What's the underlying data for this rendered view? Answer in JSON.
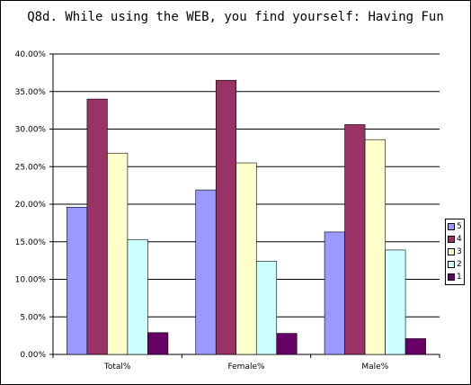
{
  "chart_data": {
    "type": "bar",
    "title": "Q8d. While using the WEB, you find yourself:  Having Fun",
    "categories": [
      "Total%",
      "Female%",
      "Male%"
    ],
    "ylim": [
      0,
      40
    ],
    "yticks": [
      "0.00%",
      "5.00%",
      "10.00%",
      "15.00%",
      "20.00%",
      "25.00%",
      "30.00%",
      "35.00%",
      "40.00%"
    ],
    "grid": true,
    "legend_position": "right",
    "series": [
      {
        "name": "5",
        "color": "#9999FF",
        "values": [
          19.6,
          21.9,
          16.3
        ]
      },
      {
        "name": "4",
        "color": "#993366",
        "values": [
          34.0,
          36.5,
          30.6
        ]
      },
      {
        "name": "3",
        "color": "#FFFFCC",
        "values": [
          26.8,
          25.5,
          28.6
        ]
      },
      {
        "name": "2",
        "color": "#CCFFFF",
        "values": [
          15.3,
          12.4,
          13.9
        ]
      },
      {
        "name": "1",
        "color": "#660066",
        "values": [
          2.9,
          2.8,
          2.1
        ]
      }
    ],
    "legend_order": [
      "5",
      "4",
      "3",
      "2",
      "1"
    ]
  }
}
